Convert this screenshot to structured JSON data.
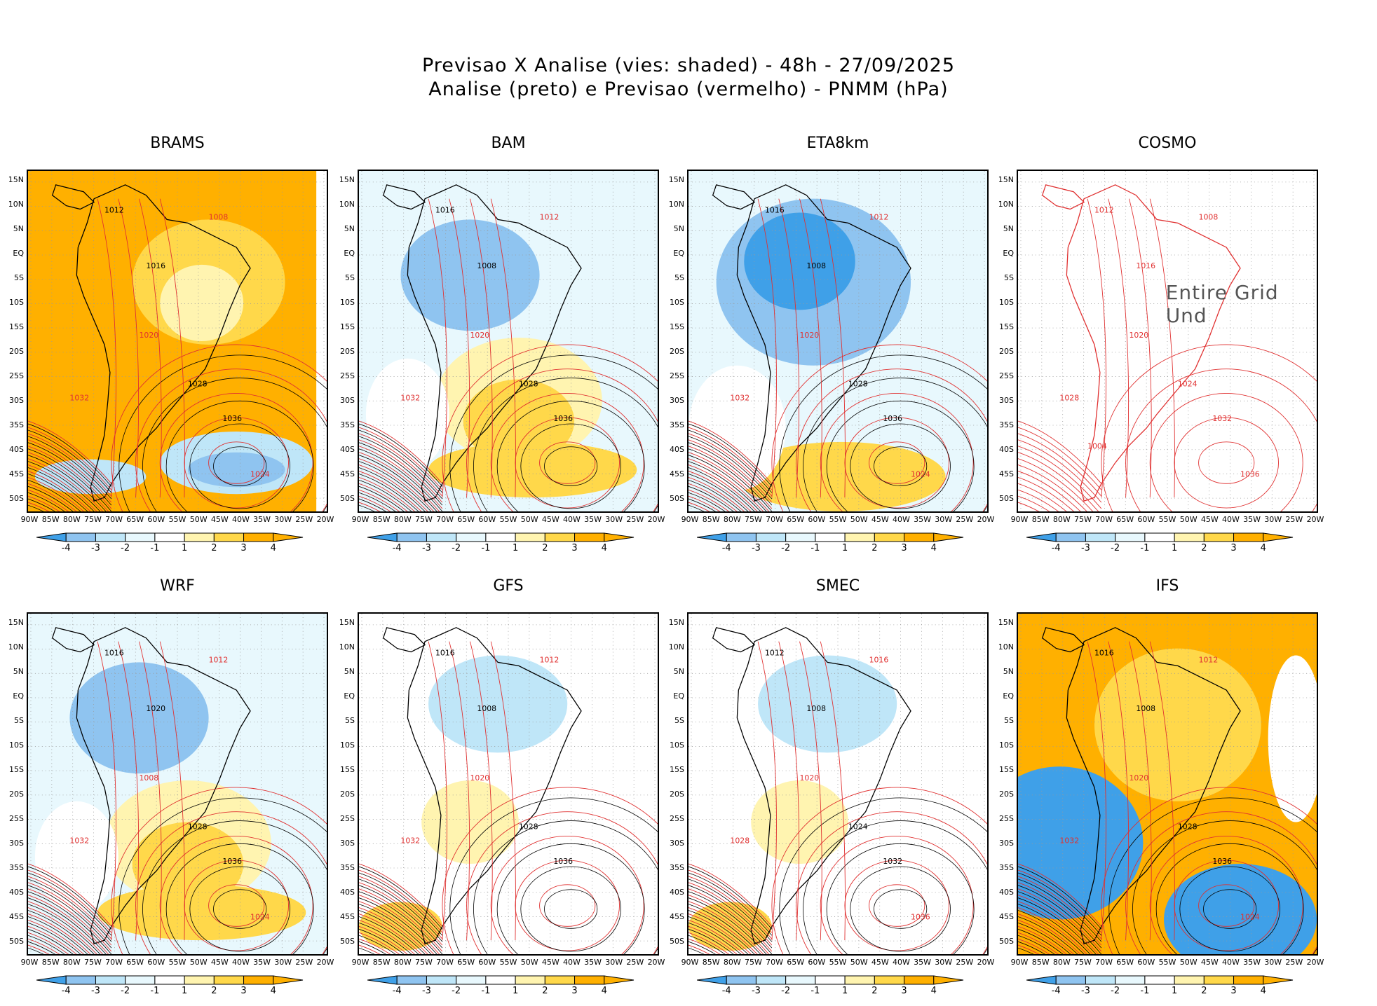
{
  "header": {
    "line1": "Previsao X Analise (vies: shaded) - 48h - 27/09/2025",
    "line2": "Analise (preto) e Previsao (vermelho) - PNMM (hPa)"
  },
  "lat_labels": [
    "15N",
    "10N",
    "5N",
    "EQ",
    "5S",
    "10S",
    "15S",
    "20S",
    "25S",
    "30S",
    "35S",
    "40S",
    "45S",
    "50S"
  ],
  "lon_labels": [
    "90W",
    "85W",
    "80W",
    "75W",
    "70W",
    "65W",
    "60W",
    "55W",
    "50W",
    "45W",
    "40W",
    "35W",
    "30W",
    "25W",
    "20W"
  ],
  "colorbar": {
    "ticks": [
      "-4",
      "-3",
      "-2",
      "-1",
      "1",
      "2",
      "3",
      "4"
    ],
    "colors": [
      "#3fa0e8",
      "#8fc4f0",
      "#bfe6f8",
      "#e8f8fd",
      "#ffffff",
      "#fff4b0",
      "#ffd84a",
      "#ffb000"
    ]
  },
  "colors": {
    "analysis_contour": "#000000",
    "forecast_contour": "#e03030",
    "grid": "#9a9a9a"
  },
  "panels": [
    {
      "title": "BRAMS",
      "bias": "warm",
      "contours": [
        "1012",
        "1008",
        "1016",
        "1020",
        "1028",
        "1032",
        "1036",
        "1024"
      ]
    },
    {
      "title": "BAM",
      "bias": "mixed",
      "contours": [
        "1016",
        "1012",
        "1008",
        "1020",
        "1028",
        "1032",
        "1036"
      ]
    },
    {
      "title": "ETA8km",
      "bias": "cold",
      "contours": [
        "1016",
        "1012",
        "1008",
        "1020",
        "1028",
        "1032",
        "1036",
        "1024"
      ]
    },
    {
      "title": "COSMO",
      "bias": "none",
      "undefined_text": "Entire Grid Und",
      "contours": [
        "1012",
        "1008",
        "1016",
        "1020",
        "1024",
        "1028",
        "1032",
        "1036",
        "1004"
      ]
    },
    {
      "title": "WRF",
      "bias": "mixed",
      "contours": [
        "1016",
        "1012",
        "1020",
        "1008",
        "1028",
        "1032",
        "1036",
        "1024"
      ]
    },
    {
      "title": "GFS",
      "bias": "light",
      "contours": [
        "1016",
        "1012",
        "1008",
        "1020",
        "1028",
        "1032",
        "1036"
      ]
    },
    {
      "title": "SMEC",
      "bias": "light",
      "contours": [
        "1012",
        "1016",
        "1008",
        "1020",
        "1024",
        "1028",
        "1032",
        "1036"
      ]
    },
    {
      "title": "IFS",
      "bias": "strong",
      "contours": [
        "1016",
        "1012",
        "1008",
        "1020",
        "1028",
        "1032",
        "1036",
        "1024"
      ]
    }
  ]
}
